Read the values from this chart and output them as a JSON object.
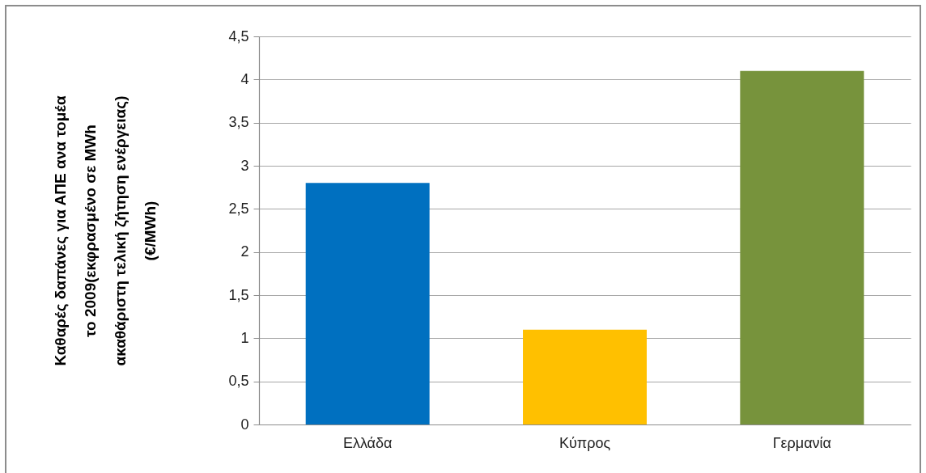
{
  "chart_data": {
    "type": "bar",
    "ylabel": "Καθαρές δαπάνες για ΑΠΕ ανα τομέα\nτο 2009(εκφρασμένο σε MWh\nακαθάριστη τελική ζήτηση ενέργειας)\n(€/MWh)",
    "categories": [
      "Ελλάδα",
      "Κύπρος",
      "Γερμανία"
    ],
    "values": [
      2.8,
      1.1,
      4.1
    ],
    "colors": [
      "#0070c0",
      "#ffc000",
      "#77933c"
    ],
    "ylim": [
      0,
      4.5
    ],
    "yticks": [
      0,
      {
        "value": 0.5,
        "label": "0,5"
      },
      1,
      {
        "value": 1.5,
        "label": "1,5"
      },
      2,
      {
        "value": 2.5,
        "label": "2,5"
      },
      3,
      {
        "value": 3.5,
        "label": "3,5"
      },
      4,
      {
        "value": 4.5,
        "label": "4,5"
      }
    ],
    "grid": "y"
  }
}
